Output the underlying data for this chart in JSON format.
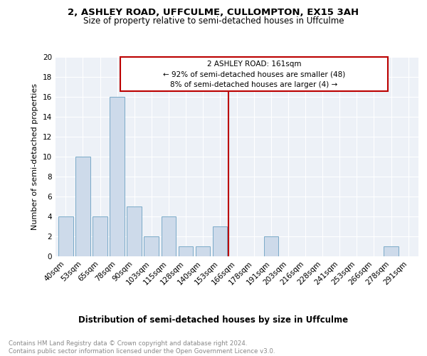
{
  "title1": "2, ASHLEY ROAD, UFFCULME, CULLOMPTON, EX15 3AH",
  "title2": "Size of property relative to semi-detached houses in Uffculme",
  "xlabel": "Distribution of semi-detached houses by size in Uffculme",
  "ylabel": "Number of semi-detached properties",
  "categories": [
    "40sqm",
    "53sqm",
    "65sqm",
    "78sqm",
    "90sqm",
    "103sqm",
    "115sqm",
    "128sqm",
    "140sqm",
    "153sqm",
    "166sqm",
    "178sqm",
    "191sqm",
    "203sqm",
    "216sqm",
    "228sqm",
    "241sqm",
    "253sqm",
    "266sqm",
    "278sqm",
    "291sqm"
  ],
  "values": [
    4,
    10,
    4,
    16,
    5,
    2,
    4,
    1,
    1,
    3,
    0,
    0,
    2,
    0,
    0,
    0,
    0,
    0,
    0,
    1,
    0
  ],
  "bar_color": "#cddaea",
  "bar_edge_color": "#7aaac8",
  "vline_x": 9.5,
  "annotation_title": "2 ASHLEY ROAD: 161sqm",
  "annotation_line1": "← 92% of semi-detached houses are smaller (48)",
  "annotation_line2": "8% of semi-detached houses are larger (4) →",
  "vline_color": "#bb0000",
  "annotation_box_edge_color": "#bb0000",
  "ylim": [
    0,
    20
  ],
  "yticks": [
    0,
    2,
    4,
    6,
    8,
    10,
    12,
    14,
    16,
    18,
    20
  ],
  "footer": "Contains HM Land Registry data © Crown copyright and database right 2024.\nContains public sector information licensed under the Open Government Licence v3.0.",
  "bg_color": "#edf1f7"
}
